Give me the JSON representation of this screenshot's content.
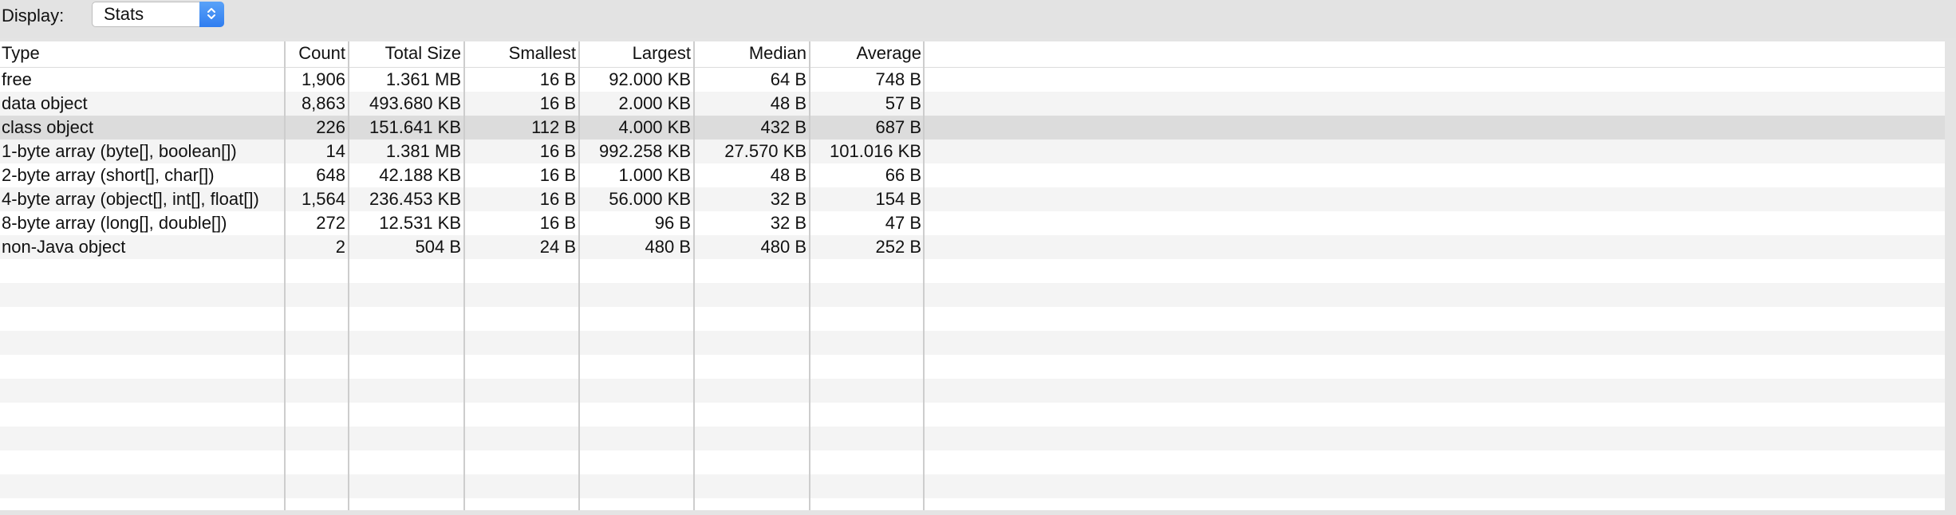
{
  "toolbar": {
    "display_label": "Display:",
    "display_value": "Stats"
  },
  "table": {
    "columns": [
      "Type",
      "Count",
      "Total Size",
      "Smallest",
      "Largest",
      "Median",
      "Average"
    ],
    "rows": [
      [
        "free",
        "1,906",
        "1.361 MB",
        "16 B",
        "92.000 KB",
        "64 B",
        "748 B"
      ],
      [
        "data object",
        "8,863",
        "493.680 KB",
        "16 B",
        "2.000 KB",
        "48 B",
        "57 B"
      ],
      [
        "class object",
        "226",
        "151.641 KB",
        "112 B",
        "4.000 KB",
        "432 B",
        "687 B"
      ],
      [
        "1-byte array (byte[], boolean[])",
        "14",
        "1.381 MB",
        "16 B",
        "992.258 KB",
        "27.570 KB",
        "101.016 KB"
      ],
      [
        "2-byte array (short[], char[])",
        "648",
        "42.188 KB",
        "16 B",
        "1.000 KB",
        "48 B",
        "66 B"
      ],
      [
        "4-byte array (object[], int[], float[])",
        "1,564",
        "236.453 KB",
        "16 B",
        "56.000 KB",
        "32 B",
        "154 B"
      ],
      [
        "8-byte array (long[], double[])",
        "272",
        "12.531 KB",
        "16 B",
        "96 B",
        "32 B",
        "47 B"
      ],
      [
        "non-Java object",
        "2",
        "504 B",
        "24 B",
        "480 B",
        "480 B",
        "252 B"
      ]
    ],
    "selected_row_index": 2
  },
  "colors": {
    "window_bg": "#e4e4e4",
    "table_bg": "#ffffff",
    "stripe_bg": "#f4f4f4",
    "selected_bg": "#dcdcdc",
    "grid_line": "#cdcdcd",
    "accent_blue": "#3b86f2"
  },
  "icons": {
    "select_arrow": "chevron-up-down-icon"
  }
}
